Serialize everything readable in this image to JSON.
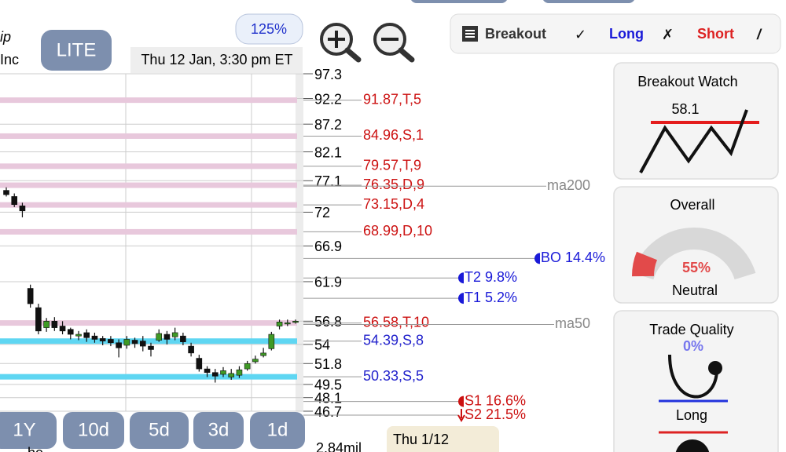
{
  "header": {
    "title_line1": "ip",
    "title_line2": "Inc",
    "lite_button": "LITE",
    "zoom_level": "125%",
    "timestamp": "Thu 12 Jan, 3:30 pm ET"
  },
  "toolbar": {
    "breakout": "Breakout",
    "breakout_mark": "✓",
    "long": "Long",
    "long_mark": "✗",
    "short": "Short",
    "short_mark": "/"
  },
  "chart_data": {
    "type": "candlestick",
    "log_scale": true,
    "ylim": [
      46.7,
      97.3
    ],
    "yticks": [
      97.3,
      92.2,
      87.2,
      82.1,
      77.1,
      72,
      66.9,
      61.9,
      56.8,
      54,
      51.8,
      49.5,
      48.1,
      46.7
    ],
    "grid": true,
    "up_color": "#3f9a25",
    "down_color": "#111111",
    "open": [
      75.5,
      74.5,
      73,
      61,
      58.5,
      56,
      56.8,
      56.2,
      55.8,
      55,
      55.4,
      55,
      54.7,
      54.6,
      54.2,
      53.9,
      54.5,
      54.4,
      53.8,
      54.5,
      55.2,
      54.9,
      55,
      53.8,
      52.4,
      51.2,
      50.8,
      50.6,
      50.3,
      50.5,
      51.2,
      52,
      52.7,
      53.5,
      56.2,
      56.5,
      56.7
    ],
    "close": [
      74.8,
      73.2,
      72.2,
      59,
      55.6,
      56.8,
      56,
      55.6,
      55.2,
      55.2,
      54.8,
      54.6,
      54.4,
      54.2,
      53.6,
      54.6,
      54.1,
      53.8,
      53.4,
      55.3,
      54.6,
      55.4,
      54.3,
      53,
      51.2,
      50.8,
      50.4,
      51,
      50.7,
      51.1,
      51.8,
      52.3,
      53,
      55.2,
      56.7,
      56.6,
      56.8
    ],
    "high": [
      76,
      75,
      73.5,
      61.5,
      59,
      57.2,
      57.3,
      56.8,
      56,
      55.6,
      55.8,
      55.4,
      55,
      55,
      54.6,
      55,
      54.8,
      55,
      54.2,
      55.8,
      55.6,
      56,
      55.4,
      54.2,
      52.8,
      51.5,
      51.2,
      51.4,
      51.2,
      51.5,
      52.1,
      52.7,
      53.6,
      55.5,
      57,
      57,
      57
    ],
    "low": [
      74.5,
      72.8,
      71.2,
      58.5,
      55.2,
      55.5,
      55.6,
      55.2,
      54.6,
      54.5,
      54.3,
      54.2,
      53.9,
      53.8,
      52.5,
      53.5,
      53.6,
      53.2,
      52.6,
      54.3,
      54,
      54.5,
      53.9,
      52.6,
      50.9,
      50.3,
      49.7,
      50.3,
      50,
      50.2,
      51,
      51.8,
      52.5,
      53.3,
      55.8,
      56.2,
      56.5
    ],
    "levels": [
      {
        "value": 91.87,
        "label": "91.87,T,5",
        "color": "#e8c8dc",
        "text_color": "#cc1111"
      },
      {
        "value": 84.96,
        "label": "84.96,S,1",
        "color": "#e8c8dc",
        "text_color": "#cc1111"
      },
      {
        "value": 79.57,
        "label": "79.57,T,9",
        "color": "#e8c8dc",
        "text_color": "#cc1111"
      },
      {
        "value": 76.35,
        "label": "76.35,D,9",
        "color": "#e8c8dc",
        "text_color": "#cc1111"
      },
      {
        "value": 73.15,
        "label": "73.15,D,4",
        "color": "#e8c8dc",
        "text_color": "#cc1111"
      },
      {
        "value": 68.99,
        "label": "68.99,D,10",
        "color": "#e8c8dc",
        "text_color": "#cc1111"
      },
      {
        "value": 56.58,
        "label": "56.58,T,10",
        "color": "#e8c8dc",
        "text_color": "#cc1111"
      },
      {
        "value": 54.39,
        "label": "54.39,S,8",
        "color": "#5fd6f2",
        "text_color": "#2222cc"
      },
      {
        "value": 50.33,
        "label": "50.33,S,5",
        "color": "#5fd6f2",
        "text_color": "#2222cc"
      }
    ],
    "markers": [
      {
        "value": 76.2,
        "label": "ma200",
        "color": "#888888"
      },
      {
        "value": 65.1,
        "label": "BO 14.4%",
        "color": "#1a1ad8"
      },
      {
        "value": 62.4,
        "label": "T2 9.8%",
        "color": "#1a1ad8"
      },
      {
        "value": 59.7,
        "label": "T1 5.2%",
        "color": "#1a1ad8"
      },
      {
        "value": 56.4,
        "label": "ma50",
        "color": "#888888"
      },
      {
        "value": 47.7,
        "label": "S1 16.6%",
        "color": "#cc1111"
      },
      {
        "value": 46.3,
        "label": "S2 21.5%",
        "color": "#cc1111"
      }
    ],
    "volume_label": "2.84mil",
    "date_label": "Thu 1/12"
  },
  "range_buttons": [
    "1Y",
    "10d",
    "5d",
    "3d",
    "1d"
  ],
  "footer_fragment": "he",
  "panels": {
    "breakout_watch": {
      "title": "Breakout Watch",
      "value": "58.1"
    },
    "overall": {
      "title": "Overall",
      "value": "55%",
      "rating": "Neutral"
    },
    "trade_quality": {
      "title": "Trade Quality",
      "value": "0%",
      "direction": "Long"
    }
  }
}
